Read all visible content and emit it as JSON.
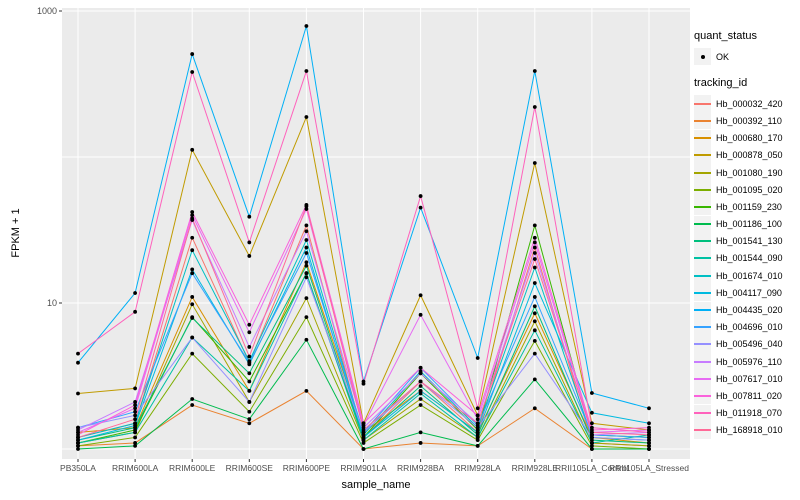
{
  "axes": {
    "y_title": "FPKM + 1",
    "x_title": "sample_name",
    "y_tick_labels": [
      "1000",
      "10"
    ]
  },
  "legend": {
    "quant_status_title": "quant_status",
    "quant_status_items": [
      "OK"
    ],
    "tracking_id_title": "tracking_id"
  },
  "style": {
    "panel_bg": "#EBEBEB",
    "grid_color": "#FFFFFF",
    "point_color": "#000000",
    "axis_text_color": "#4D4D4D",
    "legend_key_bg": "#F2F2F2"
  },
  "chart_data": {
    "type": "line",
    "title": "",
    "xlabel": "sample_name",
    "ylabel": "FPKM + 1",
    "y_scale": "log10",
    "ylim": [
      1,
      1000
    ],
    "y_labeled_breaks": [
      1000,
      10
    ],
    "y_gridlines": [
      1000,
      100,
      10,
      1
    ],
    "grid": true,
    "legend_position": "right",
    "point_marker": "black-dot",
    "categories": [
      "PB350LA",
      "RRIM600LA",
      "RRIM600LE",
      "RRIM600SE",
      "RRIM600PE",
      "RRIM901LA",
      "RRIM928BA",
      "RRIM928LA",
      "RRIM928LE",
      "RRII105LA_Control",
      "RRII105LA_Stressed"
    ],
    "series": [
      {
        "name": "Hb_000032_420",
        "color": "#F8766D",
        "values": [
          1.2,
          1.5,
          28,
          3.9,
          34,
          1.2,
          2.9,
          1.3,
          24,
          1.1,
          1.05
        ]
      },
      {
        "name": "Hb_000392_110",
        "color": "#EA8331",
        "values": [
          1.05,
          1.1,
          2.0,
          1.5,
          2.5,
          1.0,
          1.1,
          1.05,
          1.9,
          1.0,
          1.0
        ]
      },
      {
        "name": "Hb_000680_170",
        "color": "#D89000",
        "values": [
          1.3,
          1.4,
          11,
          2.5,
          19,
          1.3,
          2.5,
          1.3,
          8.5,
          1.2,
          1.1
        ]
      },
      {
        "name": "Hb_000878_050",
        "color": "#C09B00",
        "values": [
          2.4,
          2.6,
          112,
          21,
          188,
          1.5,
          11.3,
          1.7,
          91,
          1.5,
          1.35
        ]
      },
      {
        "name": "Hb_001080_190",
        "color": "#A3A500",
        "values": [
          1.1,
          1.3,
          9.8,
          2.1,
          10.8,
          1.15,
          2.2,
          1.2,
          7.5,
          1.1,
          1.05
        ]
      },
      {
        "name": "Hb_001095_020",
        "color": "#7CAE00",
        "values": [
          1.05,
          1.2,
          4.5,
          1.8,
          8.0,
          1.1,
          2.0,
          1.15,
          5.5,
          1.05,
          1.0
        ]
      },
      {
        "name": "Hb_001159_230",
        "color": "#39B600",
        "values": [
          1.1,
          1.35,
          8.0,
          2.9,
          16,
          1.2,
          3.3,
          1.35,
          34,
          1.25,
          1.2
        ]
      },
      {
        "name": "Hb_001186_100",
        "color": "#00BB4E",
        "values": [
          1.0,
          1.05,
          2.2,
          1.6,
          5.6,
          1.0,
          1.3,
          1.05,
          3.0,
          1.0,
          1.0
        ]
      },
      {
        "name": "Hb_001541_130",
        "color": "#00BF7D",
        "values": [
          1.15,
          1.4,
          7.9,
          3.3,
          18,
          1.2,
          2.7,
          1.25,
          9.5,
          1.15,
          1.1
        ]
      },
      {
        "name": "Hb_001544_090",
        "color": "#00C1A3",
        "values": [
          1.1,
          1.3,
          5.8,
          2.5,
          16,
          1.15,
          2.4,
          1.2,
          6.5,
          1.1,
          1.25
        ]
      },
      {
        "name": "Hb_001674_010",
        "color": "#00BFC4",
        "values": [
          1.2,
          1.5,
          23,
          4.0,
          27,
          1.25,
          3.4,
          1.4,
          17.5,
          1.2,
          1.15
        ]
      },
      {
        "name": "Hb_004117_090",
        "color": "#00BAE0",
        "values": [
          1.15,
          1.45,
          17,
          3.8,
          24,
          1.2,
          2.5,
          1.3,
          13.7,
          1.77,
          1.5
        ]
      },
      {
        "name": "Hb_004435_020",
        "color": "#00B0F6",
        "values": [
          3.9,
          11.7,
          507,
          39,
          789,
          2.9,
          45,
          4.2,
          388,
          2.42,
          1.9
        ]
      },
      {
        "name": "Hb_004696_010",
        "color": "#35A2FF",
        "values": [
          1.4,
          1.8,
          16,
          3.9,
          22,
          1.3,
          3.6,
          1.45,
          11,
          1.25,
          1.2
        ]
      },
      {
        "name": "Hb_005496_040",
        "color": "#9590FF",
        "values": [
          1.4,
          1.7,
          5.8,
          2.1,
          15,
          1.3,
          2.9,
          1.4,
          4.5,
          1.2,
          1.15
        ]
      },
      {
        "name": "Hb_005976_110",
        "color": "#C77CFF",
        "values": [
          1.35,
          2.1,
          37,
          5.0,
          31,
          1.4,
          3.3,
          1.5,
          22,
          1.25,
          1.3
        ]
      },
      {
        "name": "Hb_007617_010",
        "color": "#E76BF3",
        "values": [
          1.3,
          1.9,
          40,
          6.3,
          44,
          1.45,
          8.3,
          1.6,
          26,
          1.3,
          1.35
        ]
      },
      {
        "name": "Hb_007811_020",
        "color": "#FA62DB",
        "values": [
          1.25,
          2.0,
          42,
          7.1,
          47,
          1.5,
          3.6,
          1.7,
          28,
          1.35,
          1.4
        ]
      },
      {
        "name": "Hb_011918_070",
        "color": "#FF62BC",
        "values": [
          4.5,
          8.7,
          382,
          26,
          388,
          2.8,
          54,
          1.9,
          220,
          1.4,
          1.3
        ]
      },
      {
        "name": "Hb_168918_010",
        "color": "#FF6A98",
        "values": [
          1.2,
          1.6,
          38,
          4.3,
          46,
          1.35,
          2.9,
          1.5,
          20,
          1.3,
          1.25
        ]
      }
    ]
  }
}
